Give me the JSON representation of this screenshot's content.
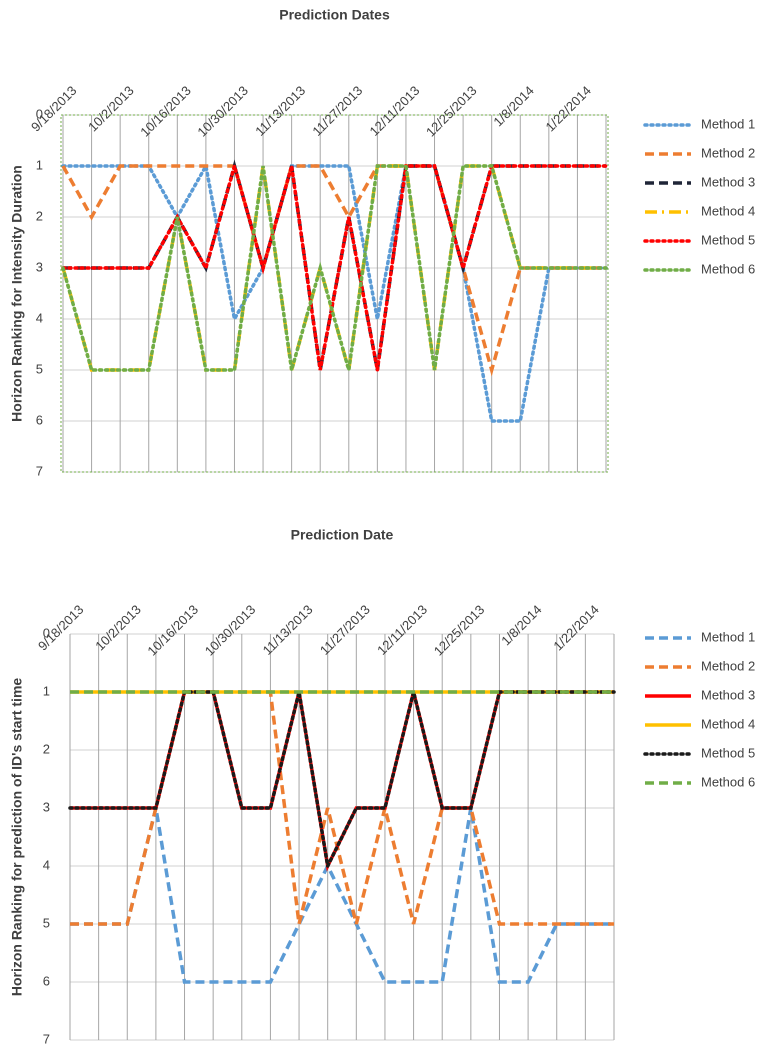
{
  "chart_data": [
    {
      "type": "line",
      "title": "Prediction Dates",
      "y_label": "Horizon Ranking for Intensity Duration",
      "categories": [
        "9/18/2013",
        null,
        "10/2/2013",
        null,
        "10/16/2013",
        null,
        "10/30/2013",
        null,
        "11/13/2013",
        null,
        "11/27/2013",
        null,
        "12/11/2013",
        null,
        "12/25/2013",
        null,
        "1/8/2014",
        null,
        "1/22/2014",
        null
      ],
      "ylim": [
        0,
        7
      ],
      "yticks": [
        0,
        1,
        2,
        3,
        4,
        5,
        6,
        7
      ],
      "y_reversed": true,
      "grid": true,
      "legend": "right",
      "series": [
        {
          "name": "Method 1",
          "color": "#5b9bd5",
          "style": "dotted",
          "values": [
            1,
            1,
            1,
            1,
            2,
            1,
            4,
            3,
            1,
            1,
            1,
            4,
            1,
            1,
            3,
            6,
            6,
            3,
            3,
            3
          ]
        },
        {
          "name": "Method 2",
          "color": "#ed7d31",
          "style": "dashed",
          "values": [
            1,
            2,
            1,
            1,
            1,
            1,
            1,
            3,
            1,
            1,
            2,
            1,
            1,
            1,
            3,
            5,
            3,
            3,
            3,
            3
          ]
        },
        {
          "name": "Method 3",
          "color": "#1f2537",
          "style": "dashed",
          "values": [
            3,
            3,
            3,
            3,
            2,
            3,
            1,
            3,
            1,
            5,
            2,
            5,
            1,
            1,
            3,
            1,
            1,
            1,
            1,
            1
          ]
        },
        {
          "name": "Method 4",
          "color": "#ffc000",
          "style": "dashdot",
          "values": [
            3,
            5,
            5,
            5,
            2,
            5,
            5,
            1,
            5,
            3,
            5,
            1,
            1,
            5,
            1,
            1,
            3,
            3,
            3,
            3
          ]
        },
        {
          "name": "Method 5",
          "color": "#ff0000",
          "style": "dotted",
          "values": [
            3,
            3,
            3,
            3,
            2,
            3,
            1,
            3,
            1,
            5,
            2,
            5,
            1,
            1,
            3,
            1,
            1,
            1,
            1,
            1
          ]
        },
        {
          "name": "Method 6",
          "color": "#70ad47",
          "style": "dotted",
          "values": [
            3,
            5,
            5,
            5,
            2,
            5,
            5,
            1,
            5,
            3,
            5,
            1,
            1,
            5,
            1,
            1,
            3,
            3,
            3,
            3
          ]
        }
      ]
    },
    {
      "type": "line",
      "title": "Prediction Date",
      "y_label": "Horizon Ranking for prediction of  ID's start time",
      "categories": [
        "9/18/2013",
        null,
        "10/2/2013",
        null,
        "10/16/2013",
        null,
        "10/30/2013",
        null,
        "11/13/2013",
        null,
        "11/27/2013",
        null,
        "12/11/2013",
        null,
        "12/25/2013",
        null,
        "1/8/2014",
        null,
        "1/22/2014",
        null
      ],
      "ylim": [
        0,
        7
      ],
      "yticks": [
        0,
        1,
        2,
        3,
        4,
        5,
        6,
        7
      ],
      "y_reversed": true,
      "grid": true,
      "legend": "right",
      "series": [
        {
          "name": "Method 1",
          "color": "#5b9bd5",
          "style": "dashed",
          "values": [
            5,
            5,
            5,
            3,
            6,
            6,
            6,
            6,
            5,
            4,
            5,
            6,
            6,
            6,
            3,
            6,
            6,
            5,
            5,
            5
          ]
        },
        {
          "name": "Method 2",
          "color": "#ed7d31",
          "style": "dashed",
          "values": [
            5,
            5,
            5,
            3,
            1,
            1,
            1,
            1,
            5,
            3,
            5,
            3,
            5,
            3,
            3,
            5,
            5,
            5,
            5,
            5
          ]
        },
        {
          "name": "Method 3",
          "color": "#ff0000",
          "style": "solid",
          "values": [
            3,
            3,
            3,
            3,
            1,
            1,
            3,
            3,
            1,
            4,
            3,
            3,
            1,
            3,
            3,
            1,
            1,
            1,
            1,
            1
          ]
        },
        {
          "name": "Method 4",
          "color": "#ffc000",
          "style": "solid",
          "values": [
            1,
            1,
            1,
            1,
            1,
            1,
            1,
            1,
            1,
            1,
            1,
            1,
            1,
            1,
            1,
            1,
            1,
            1,
            1,
            1
          ]
        },
        {
          "name": "Method 5",
          "color": "#1a1a1a",
          "style": "dotted",
          "values": [
            3,
            3,
            3,
            3,
            1,
            1,
            3,
            3,
            1,
            4,
            3,
            3,
            1,
            3,
            3,
            1,
            1,
            1,
            1,
            1
          ]
        },
        {
          "name": "Method 6",
          "color": "#70ad47",
          "style": "dashed",
          "values": [
            1,
            1,
            1,
            1,
            1,
            1,
            1,
            1,
            1,
            1,
            1,
            1,
            1,
            1,
            1,
            1,
            1,
            1,
            1,
            1
          ]
        }
      ]
    }
  ]
}
